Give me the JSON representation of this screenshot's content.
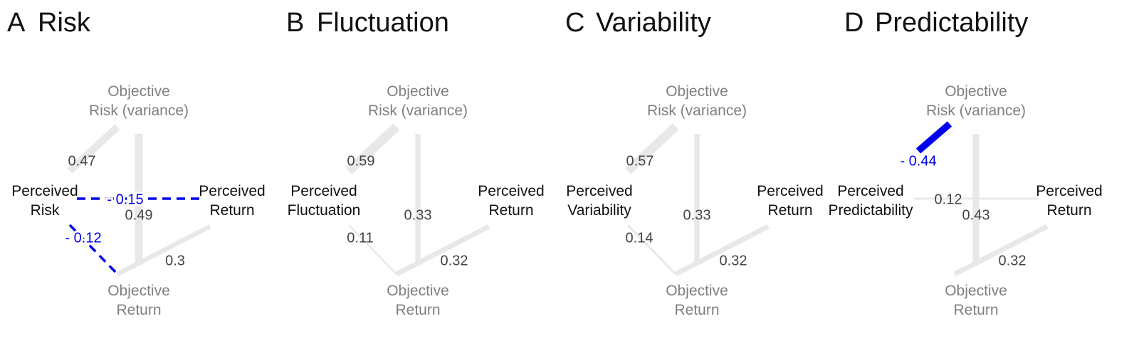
{
  "colors": {
    "positive_edge": "#e8e8e8",
    "negative_edge": "#0000ee",
    "objective_text": "#7f7f7f",
    "perceived_text": "#111111",
    "label_text": "#444444"
  },
  "panels": [
    {
      "letter": "A",
      "title": "Risk",
      "nodes": {
        "objective_risk": [
          "Objective",
          "Risk (variance)"
        ],
        "perceived_main": [
          "Perceived",
          "Risk"
        ],
        "perceived_return": [
          "Perceived",
          "Return"
        ],
        "objective_return": [
          "Objective",
          "Return"
        ]
      },
      "edges": [
        {
          "from": "objective_risk",
          "to": "perceived_main",
          "label": "0.47",
          "value": 0.47,
          "style": "solid"
        },
        {
          "from": "objective_risk",
          "to": "objective_return",
          "label": "0.49",
          "value": 0.49,
          "style": "solid"
        },
        {
          "from": "objective_return",
          "to": "perceived_return",
          "label": "0.3",
          "value": 0.3,
          "style": "solid"
        },
        {
          "from": "perceived_main",
          "to": "perceived_return",
          "label": "- 0.15",
          "value": -0.15,
          "style": "dashed"
        },
        {
          "from": "perceived_main",
          "to": "objective_return",
          "label": "- 0.12",
          "value": -0.12,
          "style": "dashed"
        }
      ]
    },
    {
      "letter": "B",
      "title": "Fluctuation",
      "nodes": {
        "objective_risk": [
          "Objective",
          "Risk (variance)"
        ],
        "perceived_main": [
          "Perceived",
          "Fluctuation"
        ],
        "perceived_return": [
          "Perceived",
          "Return"
        ],
        "objective_return": [
          "Objective",
          "Return"
        ]
      },
      "edges": [
        {
          "from": "objective_risk",
          "to": "perceived_main",
          "label": "0.59",
          "value": 0.59,
          "style": "solid"
        },
        {
          "from": "objective_risk",
          "to": "objective_return",
          "label": "0.33",
          "value": 0.33,
          "style": "solid"
        },
        {
          "from": "perceived_main",
          "to": "objective_return",
          "label": "0.11",
          "value": 0.11,
          "style": "solid"
        },
        {
          "from": "objective_return",
          "to": "perceived_return",
          "label": "0.32",
          "value": 0.32,
          "style": "solid"
        }
      ]
    },
    {
      "letter": "C",
      "title": "Variability",
      "nodes": {
        "objective_risk": [
          "Objective",
          "Risk (variance)"
        ],
        "perceived_main": [
          "Perceived",
          "Variability"
        ],
        "perceived_return": [
          "Perceived",
          "Return"
        ],
        "objective_return": [
          "Objective",
          "Return"
        ]
      },
      "edges": [
        {
          "from": "objective_risk",
          "to": "perceived_main",
          "label": "0.57",
          "value": 0.57,
          "style": "solid"
        },
        {
          "from": "objective_risk",
          "to": "objective_return",
          "label": "0.33",
          "value": 0.33,
          "style": "solid"
        },
        {
          "from": "perceived_main",
          "to": "objective_return",
          "label": "0.14",
          "value": 0.14,
          "style": "solid"
        },
        {
          "from": "objective_return",
          "to": "perceived_return",
          "label": "0.32",
          "value": 0.32,
          "style": "solid"
        }
      ]
    },
    {
      "letter": "D",
      "title": "Predictability",
      "nodes": {
        "objective_risk": [
          "Objective",
          "Risk (variance)"
        ],
        "perceived_main": [
          "Perceived",
          "Predictability"
        ],
        "perceived_return": [
          "Perceived",
          "Return"
        ],
        "objective_return": [
          "Objective",
          "Return"
        ]
      },
      "edges": [
        {
          "from": "objective_risk",
          "to": "perceived_main",
          "label": "- 0.44",
          "value": -0.44,
          "style": "solid"
        },
        {
          "from": "objective_risk",
          "to": "objective_return",
          "label": "0.43",
          "value": 0.43,
          "style": "solid"
        },
        {
          "from": "perceived_main",
          "to": "perceived_return",
          "label": "0.12",
          "value": 0.12,
          "style": "solid"
        },
        {
          "from": "objective_return",
          "to": "perceived_return",
          "label": "0.32",
          "value": 0.32,
          "style": "solid"
        }
      ]
    }
  ]
}
